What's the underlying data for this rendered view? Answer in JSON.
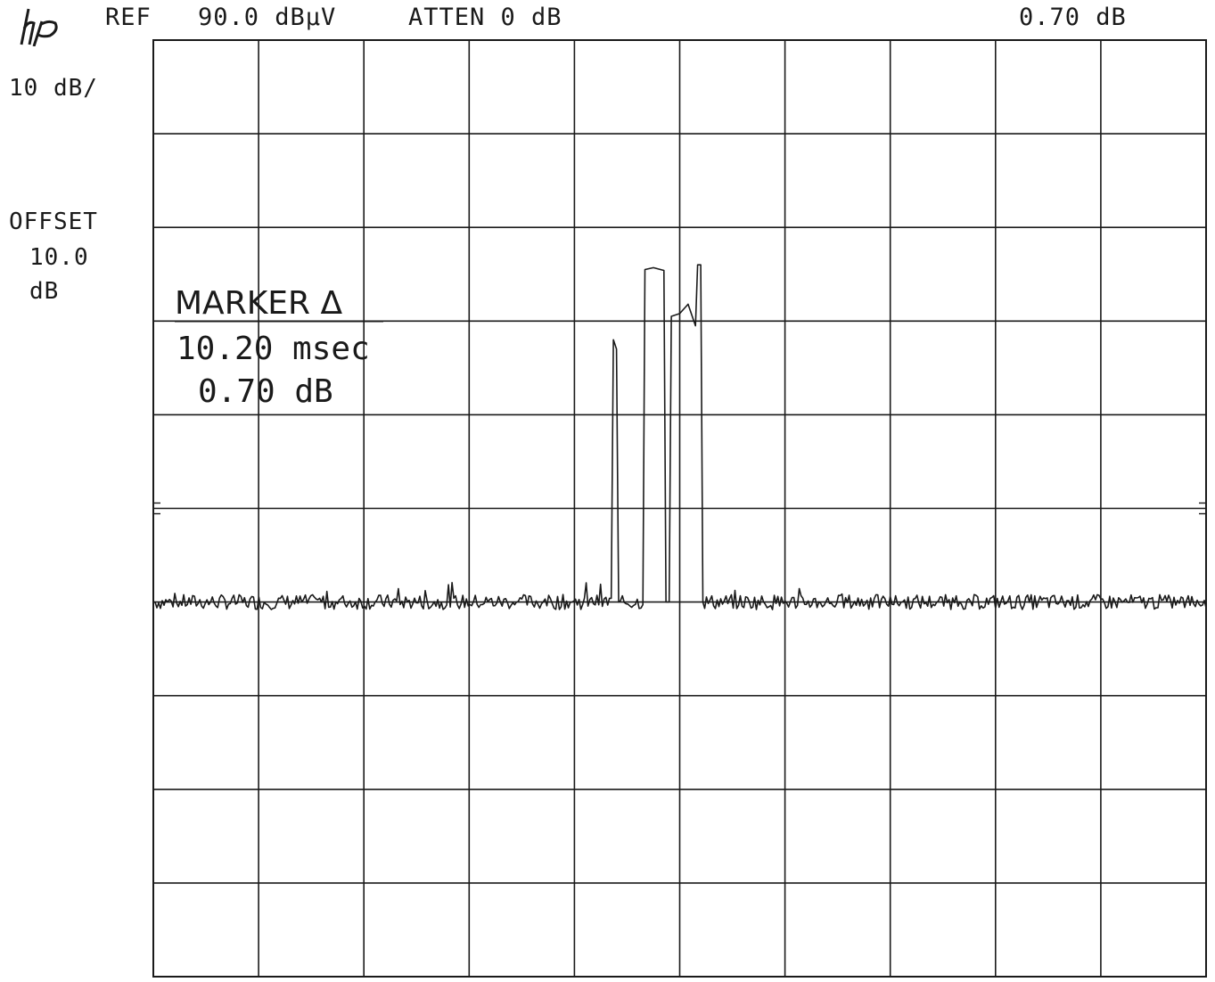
{
  "header": {
    "ref_label": "REF",
    "ref_value": "90.0 dBµV",
    "atten": "ATTEN 0 dB",
    "marker_readout": "0.70 dB"
  },
  "side": {
    "scale": "10 dB/",
    "offset_label": "OFFSET",
    "offset_value": "10.0",
    "offset_unit": "dB"
  },
  "marker": {
    "title": "MARKER Δ",
    "time": "10.20 msec",
    "level": "0.70 dB"
  },
  "colors": {
    "trace": "#1a1a1a",
    "grid": "#1a1a1a",
    "background": "#ffffff"
  },
  "chart_data": {
    "type": "line",
    "title": "",
    "xlabel": "",
    "ylabel": "",
    "divisions_x": 10,
    "divisions_y": 10,
    "grid": true,
    "ylim": [
      -10,
      90
    ],
    "y_unit": "dBµV",
    "scale_per_div": 10,
    "noise_floor": 30,
    "series": [
      {
        "values_by_division": [
          {
            "x": 0.0,
            "y": 30
          },
          {
            "x": 4.35,
            "y": 30
          },
          {
            "x": 4.37,
            "y": 58
          },
          {
            "x": 4.4,
            "y": 57
          },
          {
            "x": 4.42,
            "y": 30
          },
          {
            "x": 4.65,
            "y": 30
          },
          {
            "x": 4.67,
            "y": 65.5
          },
          {
            "x": 4.75,
            "y": 65.7
          },
          {
            "x": 4.85,
            "y": 65.4
          },
          {
            "x": 4.87,
            "y": 30
          },
          {
            "x": 4.9,
            "y": 30
          },
          {
            "x": 4.92,
            "y": 60.5
          },
          {
            "x": 5.0,
            "y": 60.8
          },
          {
            "x": 5.08,
            "y": 61.8
          },
          {
            "x": 5.15,
            "y": 59.5
          },
          {
            "x": 5.17,
            "y": 66
          },
          {
            "x": 5.2,
            "y": 66
          },
          {
            "x": 5.22,
            "y": 30
          },
          {
            "x": 10.0,
            "y": 30
          }
        ]
      }
    ]
  }
}
